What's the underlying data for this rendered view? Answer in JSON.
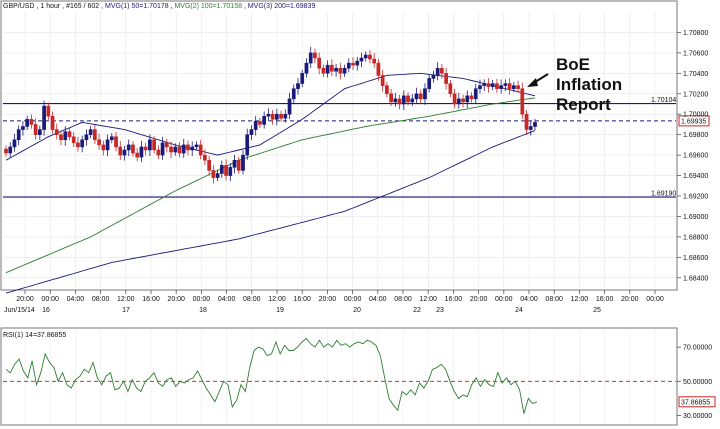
{
  "chart_data": [
    {
      "type": "candlestick",
      "header": {
        "symbol": "GBP/USD",
        "timeframe": "1 hour",
        "bars": "#165 / 602",
        "ma1": "MVG(1) 50=1.70178",
        "ma2": "MVG(2) 100=1.70158",
        "ma3": "MVG(3) 200=1.69839",
        "ma1_color": "#1a1a7a",
        "ma2_color": "#2e7d32",
        "ma3_color": "#1a1a7a"
      },
      "ylim": [
        1.683,
        1.71
      ],
      "y_ticks": [
        "1.70800",
        "1.70600",
        "1.70400",
        "1.70200",
        "1.70000",
        "1.69800",
        "1.69600",
        "1.69400",
        "1.69200",
        "1.69000",
        "1.68800",
        "1.68600",
        "1.68400"
      ],
      "x_ticks_top": [
        "20:00",
        "00:00",
        "04:00",
        "08:00",
        "12:00",
        "16:00",
        "20:00",
        "00:00",
        "04:00",
        "08:00",
        "12:00",
        "16:00",
        "20:00",
        "00:00",
        "04:00",
        "08:00",
        "12:00",
        "16:00",
        "20:00",
        "00:00",
        "04:00",
        "08:00",
        "12:00",
        "16:00",
        "20:00",
        "00:00",
        "04:00",
        "08:00",
        "12:00",
        "16:00",
        "20:00",
        "00:00",
        "04:00",
        "08:00",
        "12:00",
        "16:00",
        "20:00"
      ],
      "x_ticks_bottom": [
        "Jun/15/14",
        "16",
        "17",
        "18",
        "19",
        "20",
        "22",
        "23",
        "24",
        "25"
      ],
      "h_levels": [
        {
          "value": 1.70104,
          "label": "1.70104",
          "color": "#1a1a7a",
          "style": "solid"
        },
        {
          "value": 1.69935,
          "label": "1.69935",
          "color": "#1a1a7a",
          "style": "dashed",
          "highlight": true
        },
        {
          "value": 1.6919,
          "label": "1.69190",
          "color": "#1a1a7a",
          "style": "solid"
        }
      ],
      "annotation": {
        "lines": [
          "BoE",
          "Inflation",
          "Report"
        ]
      },
      "candle_closes": [
        1.6962,
        1.6968,
        1.6975,
        1.6985,
        1.6988,
        1.6995,
        1.699,
        1.698,
        1.6985,
        1.7008,
        1.6998,
        1.6985,
        1.698,
        1.6975,
        1.6983,
        1.6978,
        1.6972,
        1.6968,
        1.6975,
        1.698,
        1.6985,
        1.6975,
        1.697,
        1.6965,
        1.6975,
        1.6978,
        1.6968,
        1.696,
        1.6965,
        1.697,
        1.6962,
        1.6958,
        1.6968,
        1.6965,
        1.6975,
        1.6965,
        1.696,
        1.6972,
        1.6968,
        1.6963,
        1.6968,
        1.6962,
        1.697,
        1.6965,
        1.6968,
        1.697,
        1.696,
        1.6955,
        1.6945,
        1.6938,
        1.6942,
        1.695,
        1.694,
        1.6948,
        1.6955,
        1.6945,
        1.696,
        1.698,
        1.6985,
        1.6993,
        1.699,
        1.6998,
        1.7,
        1.6995,
        1.7,
        1.6996,
        1.7,
        1.7015,
        1.7025,
        1.703,
        1.704,
        1.705,
        1.706,
        1.7055,
        1.7045,
        1.704,
        1.7048,
        1.7042,
        1.7045,
        1.704,
        1.7045,
        1.705,
        1.7048,
        1.7052,
        1.7055,
        1.7058,
        1.7054,
        1.705,
        1.7038,
        1.7028,
        1.702,
        1.7012,
        1.7015,
        1.701,
        1.7018,
        1.7012,
        1.7015,
        1.702,
        1.7015,
        1.7025,
        1.7035,
        1.7038,
        1.7045,
        1.704,
        1.703,
        1.702,
        1.701,
        1.7015,
        1.7012,
        1.7018,
        1.7015,
        1.7025,
        1.7028,
        1.703,
        1.7027,
        1.703,
        1.7025,
        1.7028,
        1.703,
        1.7025,
        1.7028,
        1.7025,
        1.7,
        1.6985,
        1.6988,
        1.6992
      ],
      "ma_series": {
        "ma50_keypoints": [
          [
            0,
            1.6955
          ],
          [
            10,
            1.6978
          ],
          [
            18,
            1.6992
          ],
          [
            28,
            1.6985
          ],
          [
            40,
            1.697
          ],
          [
            50,
            1.696
          ],
          [
            60,
            1.697
          ],
          [
            70,
            1.6995
          ],
          [
            80,
            1.7025
          ],
          [
            90,
            1.7038
          ],
          [
            98,
            1.704
          ],
          [
            108,
            1.7035
          ],
          [
            118,
            1.7025
          ],
          [
            125,
            1.7018
          ]
        ],
        "ma100_keypoints": [
          [
            0,
            1.6845
          ],
          [
            20,
            1.688
          ],
          [
            40,
            1.6925
          ],
          [
            55,
            1.6955
          ],
          [
            70,
            1.6975
          ],
          [
            85,
            1.6988
          ],
          [
            100,
            1.6998
          ],
          [
            115,
            1.701
          ],
          [
            125,
            1.7016
          ]
        ],
        "ma200_keypoints": [
          [
            0,
            1.6825
          ],
          [
            25,
            1.6855
          ],
          [
            55,
            1.6878
          ],
          [
            80,
            1.6905
          ],
          [
            100,
            1.6938
          ],
          [
            115,
            1.6968
          ],
          [
            125,
            1.6984
          ]
        ]
      }
    },
    {
      "type": "line",
      "title": "RSI(1) 14=37.86855",
      "ylim": [
        25,
        80
      ],
      "y_ticks": [
        "70.00000",
        "50.00000",
        "30.00000"
      ],
      "level_line": 50,
      "current_label": "37.86855",
      "line_color": "#2e7d32",
      "level_color": "#b71c1c",
      "values": [
        57,
        55,
        60,
        63,
        56,
        52,
        62,
        48,
        55,
        66,
        61,
        58,
        50,
        55,
        48,
        46,
        51,
        53,
        57,
        55,
        61,
        52,
        48,
        53,
        55,
        45,
        46,
        50,
        44,
        51,
        46,
        44,
        50,
        52,
        55,
        49,
        47,
        51,
        52,
        47,
        50,
        49,
        51,
        52,
        56,
        51,
        46,
        42,
        38,
        44,
        50,
        48,
        35,
        39,
        48,
        44,
        58,
        68,
        70,
        69,
        65,
        66,
        73,
        66,
        71,
        68,
        68,
        70,
        73,
        75,
        72,
        70,
        74,
        70,
        72,
        70,
        74,
        71,
        72,
        70,
        72,
        73,
        72,
        74,
        73,
        71,
        65,
        52,
        40,
        36,
        33,
        44,
        42,
        45,
        42,
        49,
        46,
        50,
        57,
        58,
        60,
        57,
        50,
        44,
        40,
        42,
        41,
        48,
        52,
        47,
        51,
        48,
        47,
        55,
        49,
        52,
        48,
        50,
        45,
        31,
        40,
        37,
        38
      ]
    }
  ]
}
